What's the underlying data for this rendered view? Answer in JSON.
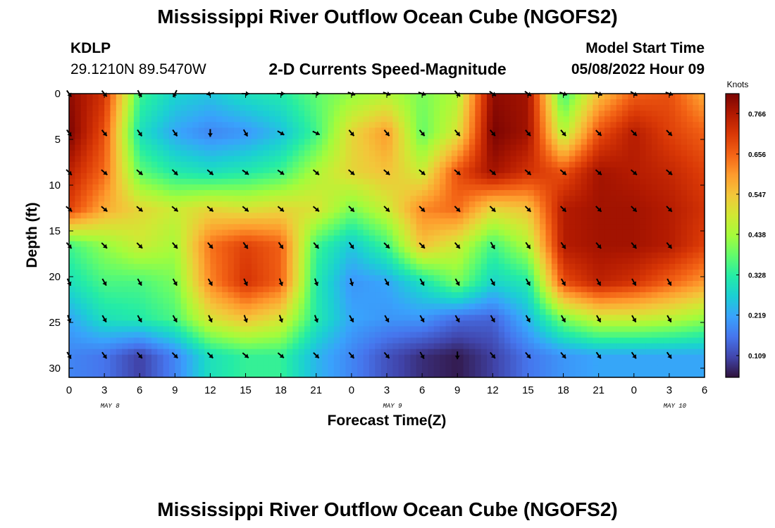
{
  "header": {
    "title": "Mississippi River Outflow Ocean Cube (NGOFS2)",
    "station": "KDLP",
    "coords": "29.1210N  89.5470W",
    "subtitle": "2-D Currents Speed-Magnitude",
    "model_start_label": "Model Start Time",
    "model_start_value": "05/08/2022 Hour 09"
  },
  "footer": {
    "title": "Mississippi River Outflow Ocean Cube (NGOFS2)"
  },
  "colors": {
    "colormap": [
      "#30123b",
      "#4145ab",
      "#4675ed",
      "#39a2fc",
      "#1bcfd4",
      "#24eca6",
      "#61fc6c",
      "#a4fc3b",
      "#d1e834",
      "#f3c63a",
      "#fe9b2d",
      "#f36315",
      "#d93806",
      "#b11901",
      "#7a0402"
    ],
    "arrow": "#000000"
  },
  "chart_data": {
    "type": "heatmap",
    "xlabel": "Forecast Time(Z)",
    "ylabel": "Depth (ft)",
    "x_tick_labels": [
      "0",
      "3",
      "6",
      "9",
      "12",
      "15",
      "18",
      "21",
      "0",
      "3",
      "6",
      "9",
      "12",
      "15",
      "18",
      "21",
      "0",
      "3",
      "6"
    ],
    "date_labels": [
      {
        "label": "MAY 8",
        "at_hour": 3
      },
      {
        "label": "MAY 9",
        "at_hour": 27
      },
      {
        "label": "MAY 10",
        "at_hour": 51
      }
    ],
    "x_range_hours": [
      0,
      54
    ],
    "y_ticks": [
      0,
      5,
      10,
      15,
      20,
      25,
      30
    ],
    "ylim": [
      0,
      31
    ],
    "colorbar_label": "Knots",
    "colorbar_ticks": [
      "0.766",
      "0.656",
      "0.547",
      "0.438",
      "0.328",
      "0.219",
      "0.109"
    ],
    "value_range": [
      0.05,
      0.82
    ],
    "depths": [
      0,
      4.3,
      8.6,
      12.6,
      16.6,
      20.6,
      24.6,
      28.6
    ],
    "times": [
      0,
      3,
      6,
      9,
      12,
      15,
      18,
      21,
      24,
      27,
      30,
      33,
      36,
      39,
      42,
      45,
      48,
      51,
      54
    ],
    "speed": [
      [
        0.8,
        0.72,
        0.35,
        0.28,
        0.26,
        0.3,
        0.32,
        0.38,
        0.42,
        0.45,
        0.4,
        0.45,
        0.8,
        0.78,
        0.35,
        0.55,
        0.66,
        0.68,
        0.58
      ],
      [
        0.82,
        0.68,
        0.3,
        0.22,
        0.18,
        0.2,
        0.25,
        0.35,
        0.52,
        0.6,
        0.38,
        0.5,
        0.82,
        0.78,
        0.45,
        0.68,
        0.76,
        0.7,
        0.66
      ],
      [
        0.75,
        0.65,
        0.38,
        0.32,
        0.3,
        0.32,
        0.35,
        0.45,
        0.52,
        0.55,
        0.48,
        0.68,
        0.78,
        0.72,
        0.68,
        0.78,
        0.76,
        0.74,
        0.7
      ],
      [
        0.7,
        0.58,
        0.52,
        0.48,
        0.52,
        0.5,
        0.52,
        0.5,
        0.4,
        0.48,
        0.62,
        0.65,
        0.52,
        0.55,
        0.76,
        0.78,
        0.78,
        0.76,
        0.72
      ],
      [
        0.35,
        0.42,
        0.48,
        0.44,
        0.64,
        0.7,
        0.66,
        0.35,
        0.26,
        0.35,
        0.55,
        0.48,
        0.35,
        0.45,
        0.76,
        0.78,
        0.78,
        0.76,
        0.7
      ],
      [
        0.3,
        0.36,
        0.36,
        0.4,
        0.62,
        0.72,
        0.66,
        0.32,
        0.2,
        0.22,
        0.3,
        0.4,
        0.28,
        0.32,
        0.68,
        0.75,
        0.72,
        0.66,
        0.6
      ],
      [
        0.22,
        0.3,
        0.32,
        0.36,
        0.5,
        0.55,
        0.5,
        0.32,
        0.22,
        0.2,
        0.2,
        0.15,
        0.14,
        0.24,
        0.4,
        0.48,
        0.48,
        0.46,
        0.42
      ],
      [
        0.18,
        0.16,
        0.1,
        0.18,
        0.3,
        0.34,
        0.34,
        0.24,
        0.18,
        0.12,
        0.08,
        0.06,
        0.1,
        0.16,
        0.2,
        0.22,
        0.22,
        0.22,
        0.22
      ]
    ],
    "arrow_times": [
      0,
      3,
      6,
      9,
      12,
      15,
      18,
      21,
      24,
      27,
      30,
      33,
      36,
      39,
      42,
      45,
      48,
      51
    ],
    "arrow_angle_deg": [
      [
        55,
        50,
        60,
        118,
        170,
        0,
        0,
        0,
        20,
        20,
        20,
        45,
        35,
        35,
        20,
        25,
        30,
        20
      ],
      [
        55,
        50,
        55,
        55,
        90,
        60,
        30,
        25,
        50,
        50,
        50,
        50,
        50,
        50,
        50,
        45,
        45,
        45
      ],
      [
        45,
        40,
        40,
        45,
        40,
        35,
        35,
        40,
        40,
        40,
        40,
        40,
        40,
        40,
        40,
        40,
        40,
        40
      ],
      [
        40,
        40,
        40,
        40,
        40,
        40,
        40,
        40,
        45,
        45,
        45,
        45,
        45,
        45,
        45,
        45,
        45,
        45
      ],
      [
        50,
        45,
        45,
        50,
        50,
        55,
        55,
        50,
        55,
        45,
        45,
        50,
        60,
        55,
        55,
        50,
        50,
        50
      ],
      [
        65,
        60,
        60,
        60,
        60,
        65,
        70,
        70,
        75,
        60,
        60,
        60,
        60,
        60,
        60,
        60,
        60,
        60
      ],
      [
        70,
        60,
        60,
        60,
        65,
        70,
        70,
        70,
        60,
        60,
        60,
        60,
        60,
        60,
        60,
        60,
        60,
        60
      ],
      [
        60,
        55,
        50,
        45,
        45,
        40,
        40,
        45,
        50,
        50,
        60,
        90,
        50,
        50,
        50,
        55,
        55,
        55
      ]
    ]
  }
}
